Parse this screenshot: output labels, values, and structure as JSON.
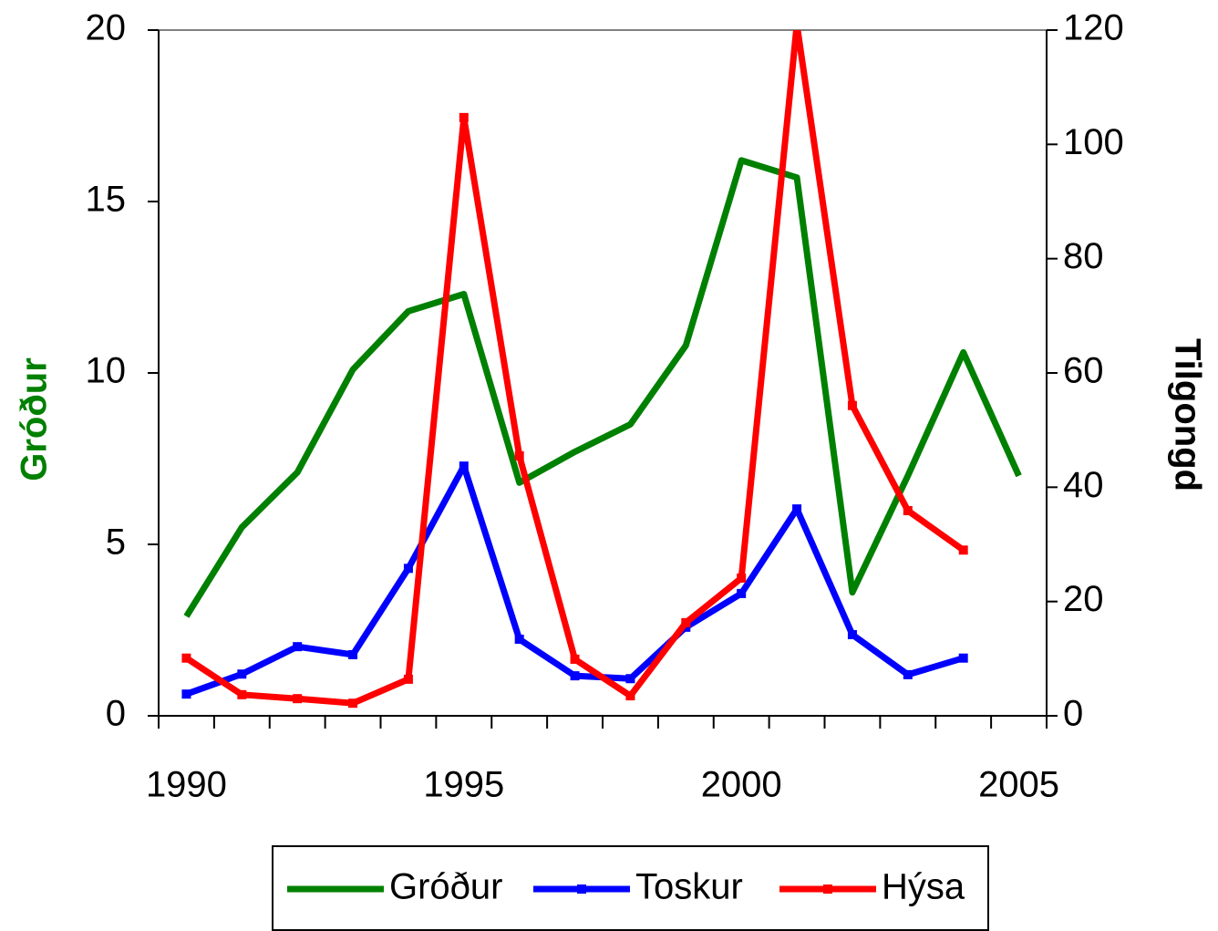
{
  "chart_data": {
    "type": "line",
    "ylabel": "Gróður",
    "y2label": "Tilgongd",
    "categories": [
      "1990",
      null,
      null,
      null,
      null,
      "1995",
      null,
      null,
      null,
      null,
      "2000",
      null,
      null,
      null,
      null,
      "2005"
    ],
    "ylim": [
      0,
      20
    ],
    "yticks": [
      0,
      5,
      10,
      15,
      20
    ],
    "y2lim": [
      0,
      120
    ],
    "y2ticks": [
      0,
      20,
      40,
      60,
      80,
      100,
      120
    ],
    "legend": "bottom",
    "series": [
      {
        "name": "Gróður",
        "color": "#008000",
        "axis": "y",
        "marker": false,
        "values": [
          2.9,
          5.5,
          7.1,
          10.1,
          11.8,
          12.3,
          6.8,
          7.7,
          8.5,
          10.8,
          16.2,
          15.7,
          3.6,
          7.0,
          10.6,
          7.0
        ]
      },
      {
        "name": "Toskur",
        "color": "#0000ff",
        "axis": "y2",
        "marker": true,
        "values": [
          3.8,
          7.3,
          12.1,
          10.7,
          25.8,
          43.7,
          13.4,
          7.0,
          6.5,
          15.5,
          21.4,
          36.2,
          14.2,
          7.2,
          10.1,
          null
        ]
      },
      {
        "name": "Hýsa",
        "color": "#ff0000",
        "axis": "y2",
        "marker": true,
        "values": [
          10.1,
          3.7,
          3.0,
          2.2,
          6.4,
          104.7,
          45.5,
          9.9,
          3.5,
          16.3,
          24.1,
          121,
          54.3,
          35.9,
          29.0,
          null
        ]
      }
    ]
  }
}
